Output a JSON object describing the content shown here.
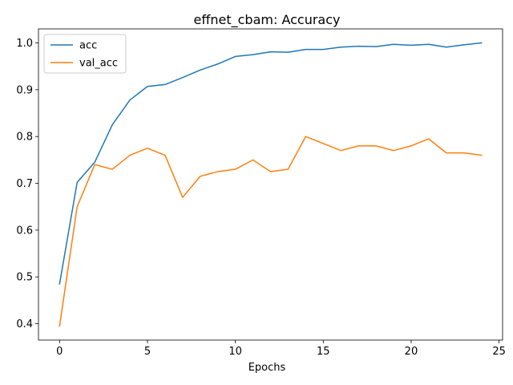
{
  "chart_data": {
    "type": "line",
    "title": "effnet_cbam: Accuracy",
    "xlabel": "Epochs",
    "ylabel": "",
    "xlim": [
      -1.2,
      25.2
    ],
    "ylim": [
      0.365,
      1.03
    ],
    "xticks": [
      0,
      5,
      10,
      15,
      20,
      25
    ],
    "yticks": [
      0.4,
      0.5,
      0.6,
      0.7,
      0.8,
      0.9,
      1.0
    ],
    "ytick_labels": [
      "0.4",
      "0.5",
      "0.6",
      "0.7",
      "0.8",
      "0.9",
      "1.0"
    ],
    "grid": false,
    "legend_position": "upper-left",
    "x": [
      0,
      1,
      2,
      3,
      4,
      5,
      6,
      7,
      8,
      9,
      10,
      11,
      12,
      13,
      14,
      15,
      16,
      17,
      18,
      19,
      20,
      21,
      22,
      23,
      24
    ],
    "series": [
      {
        "name": "acc",
        "color": "#1f77b4",
        "values": [
          0.485,
          0.702,
          0.745,
          0.825,
          0.878,
          0.907,
          0.911,
          0.926,
          0.942,
          0.955,
          0.971,
          0.975,
          0.981,
          0.98,
          0.986,
          0.986,
          0.991,
          0.993,
          0.992,
          0.997,
          0.995,
          0.997,
          0.991,
          0.996,
          1.0
        ]
      },
      {
        "name": "val_acc",
        "color": "#ff7f0e",
        "values": [
          0.395,
          0.65,
          0.74,
          0.73,
          0.76,
          0.775,
          0.76,
          0.67,
          0.715,
          0.725,
          0.73,
          0.75,
          0.725,
          0.73,
          0.8,
          0.785,
          0.77,
          0.78,
          0.78,
          0.77,
          0.78,
          0.795,
          0.765,
          0.765,
          0.76
        ]
      }
    ]
  }
}
